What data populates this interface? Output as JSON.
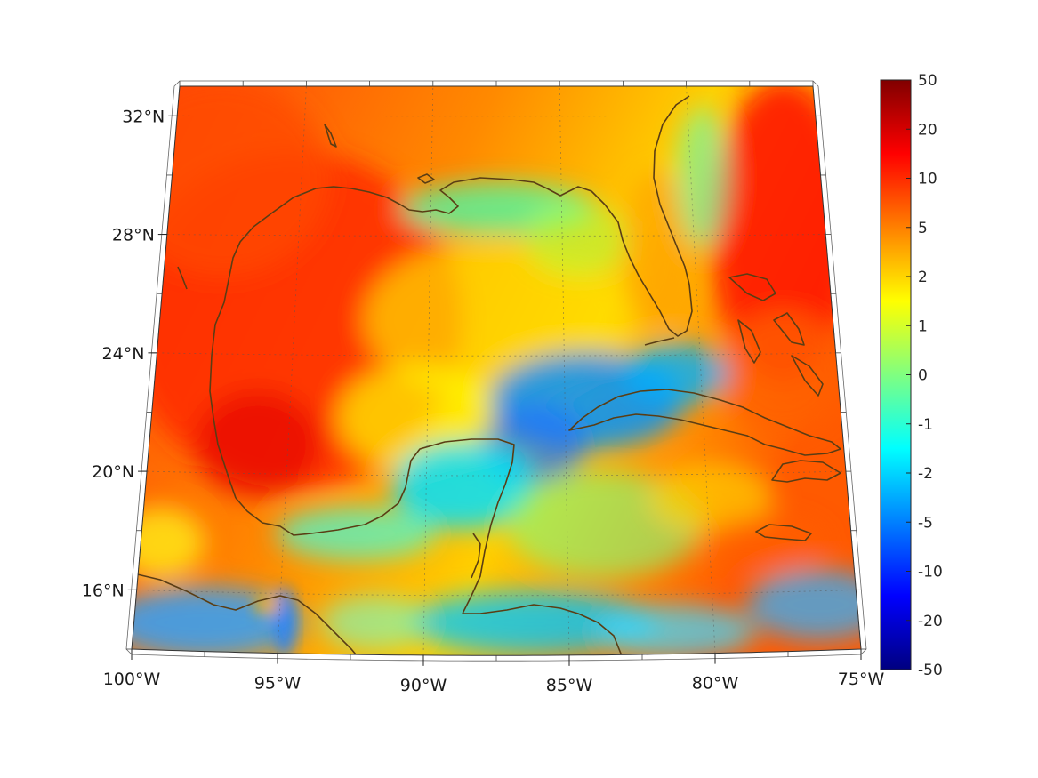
{
  "map": {
    "type": "heatmap",
    "projection": "conic",
    "lon_range": [
      -100,
      -75
    ],
    "lat_range": [
      14,
      33
    ],
    "lon_ticks": [
      {
        "value": -100,
        "label": "100°W"
      },
      {
        "value": -95,
        "label": "95°W"
      },
      {
        "value": -90,
        "label": "90°W"
      },
      {
        "value": -85,
        "label": "85°W"
      },
      {
        "value": -80,
        "label": "80°W"
      },
      {
        "value": -75,
        "label": "75°W"
      }
    ],
    "lat_ticks": [
      {
        "value": 16,
        "label": "16°N"
      },
      {
        "value": 20,
        "label": "20°N"
      },
      {
        "value": 24,
        "label": "24°N"
      },
      {
        "value": 28,
        "label": "28°N"
      },
      {
        "value": 32,
        "label": "32°N"
      }
    ],
    "grid": true,
    "coastline_color": "#5a3d14",
    "colormap": "jet"
  },
  "colorbar": {
    "ticks": [
      "50",
      "20",
      "10",
      "5",
      "2",
      "1",
      "0",
      "-1",
      "-2",
      "-5",
      "-10",
      "-20",
      "-50"
    ],
    "placement": "right",
    "colors": [
      "#800000",
      "#ff0000",
      "#ff8000",
      "#ffff00",
      "#80ff80",
      "#00ffff",
      "#0080ff",
      "#0000ff",
      "#000080"
    ]
  }
}
